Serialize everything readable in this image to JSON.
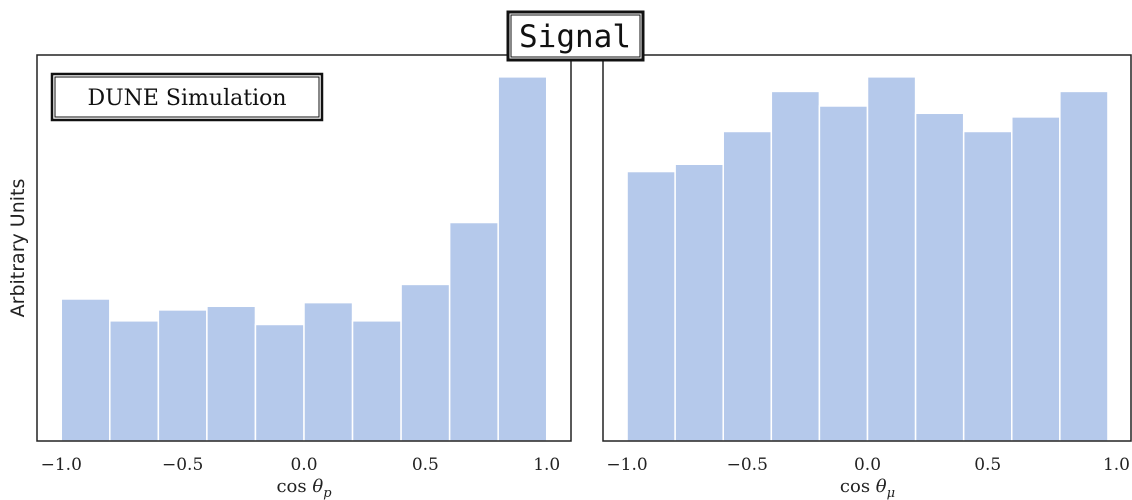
{
  "title": "Signal",
  "badge": "DUNE Simulation",
  "ylabel": "Arbitrary Units",
  "colors": {
    "bar": "#b5c9eb",
    "bar_edge": "#ffffff",
    "axis": "#222222"
  },
  "chart_data": [
    {
      "type": "bar",
      "xlabel": "cos θp",
      "bin_edges": [
        -1.0,
        -0.8,
        -0.6,
        -0.4,
        -0.2,
        0.0,
        0.2,
        0.4,
        0.6,
        0.8,
        1.0
      ],
      "values": [
        0.39,
        0.33,
        0.36,
        0.37,
        0.32,
        0.38,
        0.33,
        0.43,
        0.6,
        1.0
      ],
      "xticks": [
        "−1.0",
        "−0.5",
        "0.0",
        "0.5",
        "1.0"
      ],
      "xlim": [
        -1.1,
        1.1
      ],
      "ylim": [
        0,
        1.06
      ],
      "grid": false
    },
    {
      "type": "bar",
      "xlabel": "cos θμ",
      "bin_edges": [
        -1.0,
        -0.8,
        -0.6,
        -0.4,
        -0.2,
        0.0,
        0.2,
        0.4,
        0.6,
        0.8,
        1.0
      ],
      "values": [
        0.74,
        0.76,
        0.85,
        0.96,
        0.92,
        1.0,
        0.9,
        0.85,
        0.89,
        0.96
      ],
      "xticks": [
        "−1.0",
        "−0.5",
        "0.0",
        "0.5",
        "1.0"
      ],
      "xlim": [
        -1.1,
        1.1
      ],
      "ylim": [
        0,
        1.06
      ],
      "grid": false
    }
  ]
}
